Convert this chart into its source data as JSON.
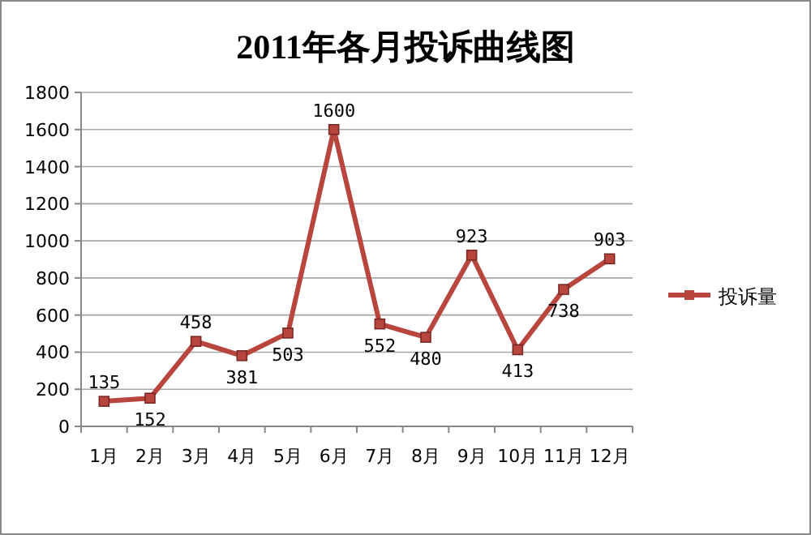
{
  "chart_data": {
    "type": "line",
    "title": "2011年各月投诉曲线图",
    "categories": [
      "1月",
      "2月",
      "3月",
      "4月",
      "5月",
      "6月",
      "7月",
      "8月",
      "9月",
      "10月",
      "11月",
      "12月"
    ],
    "series": [
      {
        "name": "投诉量",
        "color": "#b9453f",
        "values": [
          135,
          152,
          458,
          381,
          503,
          1600,
          552,
          480,
          923,
          413,
          738,
          903
        ]
      }
    ],
    "ylim": [
      0,
      1800
    ],
    "yticks": [
      0,
      200,
      400,
      600,
      800,
      1000,
      1200,
      1400,
      1600,
      1800
    ],
    "grid": "y",
    "legend": "right",
    "marker": "square",
    "line_style": "solid",
    "data_labels": true
  }
}
